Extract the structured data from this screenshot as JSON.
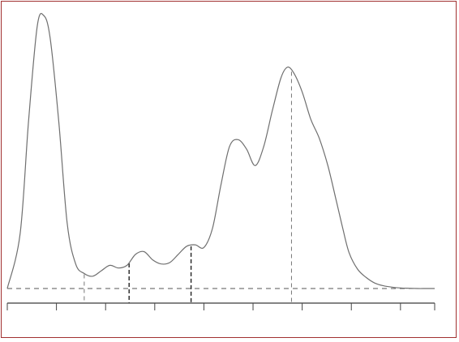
{
  "chart_data": {
    "type": "line",
    "title": "",
    "xlabel": "",
    "ylabel": "",
    "xlim": [
      0,
      100
    ],
    "ylim": [
      0,
      100
    ],
    "grid": false,
    "tick_labels_shown": false,
    "curve": {
      "x": [
        0,
        3,
        5,
        7,
        8.5,
        10,
        12,
        14,
        16,
        18,
        20,
        22,
        24,
        26,
        28,
        30,
        32,
        34,
        36,
        38,
        40,
        42,
        44,
        46,
        48,
        50,
        52,
        54,
        56,
        58,
        60,
        62,
        64,
        65.5,
        67,
        69,
        71,
        73,
        75,
        77,
        78.5,
        80,
        82,
        84,
        86,
        88,
        90,
        92,
        94,
        96,
        98,
        100
      ],
      "y": [
        0,
        20,
        62,
        96,
        100,
        92,
        62,
        24,
        9,
        5.5,
        4.5,
        6.5,
        8.5,
        7.5,
        8.5,
        12.5,
        13.5,
        10.5,
        9,
        9.5,
        12.5,
        15.5,
        16,
        15,
        22,
        38,
        52,
        54.5,
        51,
        45,
        52,
        65,
        77,
        81,
        79,
        72,
        62,
        55,
        45,
        32,
        22,
        13,
        7,
        4,
        2,
        1,
        0.5,
        0.2,
        0.1,
        0,
        0,
        0
      ]
    },
    "baseline_level": 0,
    "x_ticks": [
      0,
      11.5,
      23,
      34.5,
      46,
      57.5,
      69,
      80.5,
      92,
      100
    ],
    "dividers": [
      {
        "x": 18,
        "style": "dashed"
      },
      {
        "x": 28.5,
        "style": "bold-dashed"
      },
      {
        "x": 43,
        "style": "bold-dashed"
      },
      {
        "x": 66.5,
        "style": "dashed"
      }
    ],
    "colors": {
      "curve": "#6f6f6f",
      "frame_border": "#a13030",
      "axis": "#3a3a3a"
    }
  }
}
